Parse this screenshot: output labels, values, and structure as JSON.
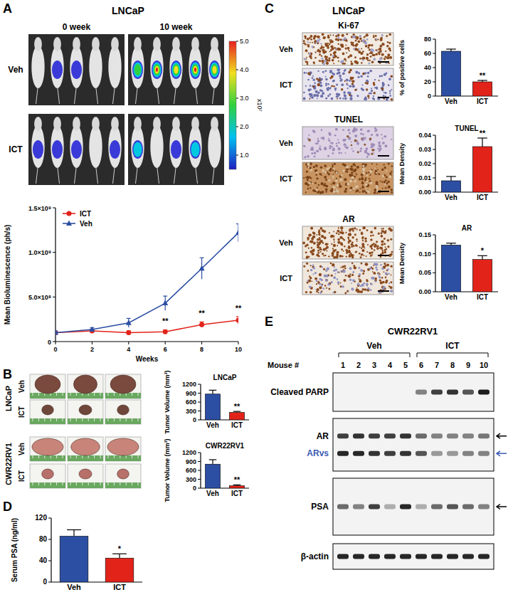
{
  "panels": {
    "A": {
      "letter": "A",
      "title": "LNCaP",
      "columns": [
        "0 week",
        "10 week"
      ],
      "rows": [
        "Veh",
        "ICT"
      ],
      "colorbar": {
        "range": [
          0.5,
          5.0
        ],
        "ticks": [
          {
            "value": 1,
            "label": "1.0"
          },
          {
            "value": 2,
            "label": "2.0"
          },
          {
            "value": 3,
            "label": "3.0"
          },
          {
            "value": 4,
            "label": "4.0"
          },
          {
            "value": 5,
            "label": "5.0"
          }
        ],
        "label": "x10⁷"
      }
    },
    "B": {
      "letter": "B",
      "rows": [
        {
          "label": "LNCaP",
          "groups": [
            "Veh",
            "ICT"
          ]
        },
        {
          "label": "CWR22RV1",
          "groups": [
            "Veh",
            "ICT"
          ]
        }
      ]
    },
    "C": {
      "letter": "C",
      "title": "LNCaP",
      "stains": [
        {
          "label": "Ki-67",
          "groups": [
            "Veh",
            "ICT"
          ]
        },
        {
          "label": "TUNEL",
          "groups": [
            "Veh",
            "ICT"
          ]
        },
        {
          "label": "AR",
          "groups": [
            "Veh",
            "ICT"
          ]
        }
      ]
    },
    "D": {
      "letter": "D"
    },
    "E": {
      "letter": "E",
      "title": "CWR22RV1",
      "groups": [
        "Veh",
        "ICT"
      ],
      "lane_title": "Mouse #",
      "lanes": [
        "1",
        "2",
        "3",
        "4",
        "5",
        "6",
        "7",
        "8",
        "9",
        "10"
      ],
      "blots": [
        {
          "rows": [
            {
              "label": "Cleaved PARP",
              "color": "#000000",
              "arrow": false,
              "intensity": [
                0,
                0,
                0,
                0,
                0,
                0.5,
                0.8,
                0.85,
                0.7,
                0.95
              ]
            }
          ]
        },
        {
          "rows": [
            {
              "label": "AR",
              "color": "#000000",
              "arrow": true,
              "intensity": [
                0.8,
                0.85,
                0.8,
                0.8,
                0.85,
                0.6,
                0.5,
                0.5,
                0.5,
                0.55
              ]
            },
            {
              "label": "ARvs",
              "color": "#3b5bb5",
              "arrow": true,
              "intensity": [
                0.9,
                0.9,
                0.85,
                0.8,
                0.85,
                0.7,
                0.4,
                0.4,
                0.5,
                0.5
              ]
            }
          ]
        },
        {
          "rows": [
            {
              "label": "PSA",
              "color": "#000000",
              "arrow": true,
              "intensity": [
                0.6,
                0.5,
                0.8,
                0.3,
                0.9,
                0.3,
                0.6,
                0.7,
                0.6,
                0.5
              ]
            }
          ]
        },
        {
          "rows": [
            {
              "label": "β-actin",
              "color": "#000000",
              "arrow": false,
              "intensity": [
                0.9,
                0.9,
                0.9,
                0.9,
                0.9,
                0.9,
                0.9,
                0.9,
                0.9,
                0.9
              ]
            }
          ]
        }
      ]
    }
  },
  "chart_data": [
    {
      "type": "line",
      "y_label": "Mean Bioluminescence (ph/s)",
      "x_label": "Weeks",
      "x": [
        0,
        2,
        4,
        6,
        8,
        10
      ],
      "xlim": [
        0,
        10
      ],
      "xticks": [
        0,
        2,
        4,
        6,
        8,
        10
      ],
      "ylim": [
        0,
        1500000000.0
      ],
      "yticks": [
        0,
        {
          "value": 500000000.0,
          "label": "5.0×10⁸"
        },
        {
          "value": 1000000000.0,
          "label": "1.0×10⁹"
        },
        {
          "value": 1500000000.0,
          "label": "1.5×10⁹"
        }
      ],
      "legend": "top-left",
      "series": [
        {
          "name": "ICT",
          "color": "#e2231a",
          "marker": "circle",
          "values": [
            100000000.0,
            120000000.0,
            100000000.0,
            110000000.0,
            190000000.0,
            240000000.0
          ],
          "errors": [
            15000000.0,
            15000000.0,
            20000000.0,
            20000000.0,
            30000000.0,
            40000000.0
          ]
        },
        {
          "name": "Veh",
          "color": "#2c4fa3",
          "marker": "triangle",
          "values": [
            100000000.0,
            135000000.0,
            210000000.0,
            430000000.0,
            820000000.0,
            1220000000.0
          ],
          "errors": [
            20000000.0,
            20000000.0,
            50000000.0,
            80000000.0,
            120000000.0,
            100000000.0
          ]
        }
      ],
      "annotations": [
        {
          "x": 6,
          "y": 200000000.0,
          "text": "**"
        },
        {
          "x": 8,
          "y": 290000000.0,
          "text": "**"
        },
        {
          "x": 10,
          "y": 340000000.0,
          "text": "**"
        }
      ]
    },
    {
      "type": "bar",
      "title": "LNCaP",
      "y_label": "Tumor Volume (mm³)",
      "categories": [
        "Veh",
        "ICT"
      ],
      "values": [
        870,
        250
      ],
      "errors": [
        130,
        35
      ],
      "colors": [
        "#2c4fa3",
        "#e2231a"
      ],
      "ylim": [
        0,
        1200
      ],
      "yticks": [
        0,
        300,
        600,
        900,
        1200
      ],
      "annotations": [
        {
          "category": 1,
          "text": "**"
        }
      ]
    },
    {
      "type": "bar",
      "title": "CWR22RV1",
      "y_label": "Tumor Volume (mm³)",
      "categories": [
        "Veh",
        "ICT"
      ],
      "values": [
        810,
        80
      ],
      "errors": [
        150,
        30
      ],
      "colors": [
        "#2c4fa3",
        "#e2231a"
      ],
      "ylim": [
        0,
        1200
      ],
      "yticks": [
        0,
        300,
        600,
        900,
        1200
      ],
      "annotations": [
        {
          "category": 1,
          "text": "**"
        }
      ]
    },
    {
      "type": "bar",
      "y_label": "% of positive cells",
      "categories": [
        "Veh",
        "ICT"
      ],
      "values": [
        63,
        20
      ],
      "errors": [
        3,
        2
      ],
      "colors": [
        "#2c4fa3",
        "#e2231a"
      ],
      "ylim": [
        0,
        80
      ],
      "yticks": [
        0,
        20,
        40,
        60,
        80
      ],
      "annotations": [
        {
          "category": 1,
          "text": "**"
        }
      ]
    },
    {
      "type": "bar",
      "title": "TUNEL",
      "y_label": "Mean Density",
      "categories": [
        "Veh",
        "ICT"
      ],
      "values": [
        0.008,
        0.032
      ],
      "errors": [
        0.003,
        0.006
      ],
      "colors": [
        "#2c4fa3",
        "#e2231a"
      ],
      "ylim": [
        0,
        0.04
      ],
      "yticks": [
        {
          "value": 0,
          "label": "0.00"
        },
        0.01,
        0.02,
        0.03,
        {
          "value": 0.04,
          "label": "0.04"
        }
      ],
      "annotations": [
        {
          "category": 1,
          "text": "**"
        }
      ]
    },
    {
      "type": "bar",
      "title": "AR",
      "y_label": "Mean Density",
      "categories": [
        "Veh",
        "ICT"
      ],
      "values": [
        0.123,
        0.085
      ],
      "errors": [
        0.005,
        0.01
      ],
      "colors": [
        "#2c4fa3",
        "#e2231a"
      ],
      "ylim": [
        0,
        0.15
      ],
      "yticks": [
        {
          "value": 0,
          "label": "0.00"
        },
        0.05,
        {
          "value": 0.1,
          "label": "0.10"
        },
        0.15
      ],
      "annotations": [
        {
          "category": 1,
          "text": "*"
        }
      ]
    },
    {
      "type": "bar",
      "y_label": "Serum PSA (ng/ml)",
      "categories": [
        "Veh",
        "ICT"
      ],
      "values": [
        86,
        45
      ],
      "errors": [
        12,
        8
      ],
      "colors": [
        "#2c4fa3",
        "#e2231a"
      ],
      "ylim": [
        0,
        120
      ],
      "yticks": [
        0,
        40,
        80,
        120
      ],
      "annotations": [
        {
          "category": 1,
          "text": "*"
        }
      ]
    }
  ]
}
